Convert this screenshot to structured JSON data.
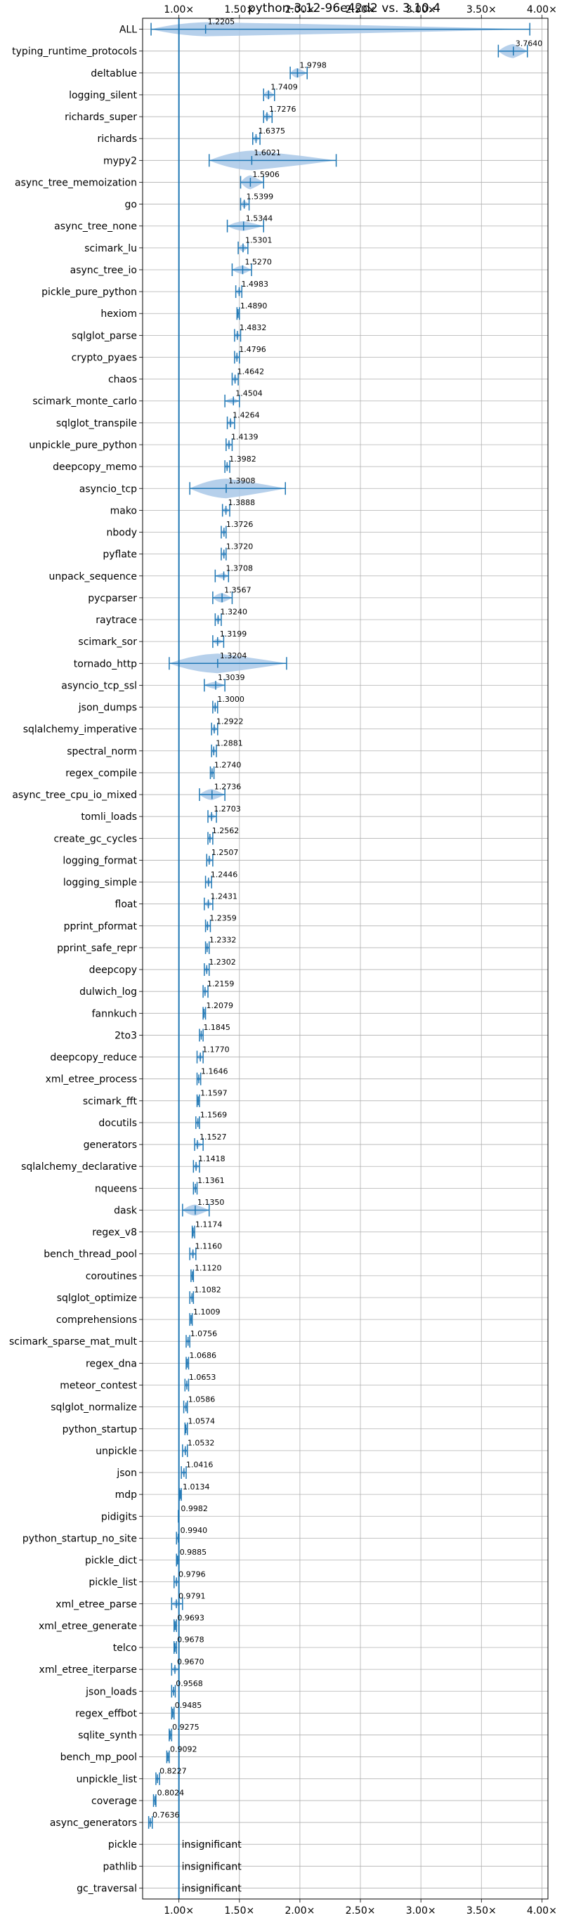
{
  "chart_data": {
    "type": "violin",
    "title": "python-3.12-96e42d2 vs. 3.10.4",
    "xlim": [
      0.7,
      4.05
    ],
    "x_ticks": [
      1.0,
      1.5,
      2.0,
      2.5,
      3.0,
      3.5,
      4.0
    ],
    "x_tick_labels": [
      "1.00×",
      "1.50×",
      "2.00×",
      "2.50×",
      "3.00×",
      "3.50×",
      "4.00×"
    ],
    "grid": true,
    "colors": {
      "line": "#1f77b4",
      "violin": "#a9c8e8",
      "grid": "#b0b0b0",
      "reference": "#1f77b4"
    },
    "reference_x": 1.0,
    "benchmarks": [
      {
        "name": "ALL",
        "median": 1.2205,
        "label": "1.2205",
        "min": 0.77,
        "max": 3.9,
        "width": 0.1
      },
      {
        "name": "typing_runtime_protocols",
        "median": 3.764,
        "label": "3.7640",
        "min": 3.64,
        "max": 3.88,
        "width": 0.1
      },
      {
        "name": "deltablue",
        "median": 1.9798,
        "label": "1.9798",
        "min": 1.92,
        "max": 2.06,
        "width": 0.07
      },
      {
        "name": "logging_silent",
        "median": 1.7409,
        "label": "1.7409",
        "min": 1.7,
        "max": 1.79,
        "width": 0.06
      },
      {
        "name": "richards_super",
        "median": 1.7276,
        "label": "1.7276",
        "min": 1.7,
        "max": 1.77,
        "width": 0.05
      },
      {
        "name": "richards",
        "median": 1.6375,
        "label": "1.6375",
        "min": 1.61,
        "max": 1.67,
        "width": 0.04
      },
      {
        "name": "mypy2",
        "median": 1.6021,
        "label": "1.6021",
        "min": 1.25,
        "max": 2.3,
        "width": 0.18
      },
      {
        "name": "async_tree_memoization",
        "median": 1.5906,
        "label": "1.5906",
        "min": 1.51,
        "max": 1.7,
        "width": 0.1
      },
      {
        "name": "go",
        "median": 1.5399,
        "label": "1.5399",
        "min": 1.51,
        "max": 1.58,
        "width": 0.05
      },
      {
        "name": "async_tree_none",
        "median": 1.5344,
        "label": "1.5344",
        "min": 1.4,
        "max": 1.7,
        "width": 0.07
      },
      {
        "name": "scimark_lu",
        "median": 1.5301,
        "label": "1.5301",
        "min": 1.49,
        "max": 1.57,
        "width": 0.05
      },
      {
        "name": "async_tree_io",
        "median": 1.527,
        "label": "1.5270",
        "min": 1.44,
        "max": 1.6,
        "width": 0.06
      },
      {
        "name": "pickle_pure_python",
        "median": 1.4983,
        "label": "1.4983",
        "min": 1.47,
        "max": 1.52,
        "width": 0.04
      },
      {
        "name": "hexiom",
        "median": 1.489,
        "label": "1.4890",
        "min": 1.48,
        "max": 1.5,
        "width": 0.03
      },
      {
        "name": "sqlglot_parse",
        "median": 1.4832,
        "label": "1.4832",
        "min": 1.46,
        "max": 1.51,
        "width": 0.04
      },
      {
        "name": "crypto_pyaes",
        "median": 1.4796,
        "label": "1.4796",
        "min": 1.46,
        "max": 1.5,
        "width": 0.03
      },
      {
        "name": "chaos",
        "median": 1.4642,
        "label": "1.4642",
        "min": 1.44,
        "max": 1.49,
        "width": 0.04
      },
      {
        "name": "scimark_monte_carlo",
        "median": 1.4504,
        "label": "1.4504",
        "min": 1.38,
        "max": 1.5,
        "width": 0.04
      },
      {
        "name": "sqlglot_transpile",
        "median": 1.4264,
        "label": "1.4264",
        "min": 1.4,
        "max": 1.46,
        "width": 0.04
      },
      {
        "name": "unpickle_pure_python",
        "median": 1.4139,
        "label": "1.4139",
        "min": 1.39,
        "max": 1.44,
        "width": 0.04
      },
      {
        "name": "deepcopy_memo",
        "median": 1.3982,
        "label": "1.3982",
        "min": 1.38,
        "max": 1.42,
        "width": 0.04
      },
      {
        "name": "asyncio_tcp",
        "median": 1.3908,
        "label": "1.3908",
        "min": 1.09,
        "max": 1.88,
        "width": 0.16
      },
      {
        "name": "mako",
        "median": 1.3888,
        "label": "1.3888",
        "min": 1.36,
        "max": 1.42,
        "width": 0.04
      },
      {
        "name": "nbody",
        "median": 1.3726,
        "label": "1.3726",
        "min": 1.35,
        "max": 1.39,
        "width": 0.04
      },
      {
        "name": "pyflate",
        "median": 1.372,
        "label": "1.3720",
        "min": 1.35,
        "max": 1.39,
        "width": 0.04
      },
      {
        "name": "unpack_sequence",
        "median": 1.3708,
        "label": "1.3708",
        "min": 1.3,
        "max": 1.41,
        "width": 0.04
      },
      {
        "name": "pycparser",
        "median": 1.3567,
        "label": "1.3567",
        "min": 1.28,
        "max": 1.44,
        "width": 0.07
      },
      {
        "name": "raytrace",
        "median": 1.324,
        "label": "1.3240",
        "min": 1.3,
        "max": 1.35,
        "width": 0.04
      },
      {
        "name": "scimark_sor",
        "median": 1.3199,
        "label": "1.3199",
        "min": 1.28,
        "max": 1.37,
        "width": 0.04
      },
      {
        "name": "tornado_http",
        "median": 1.3204,
        "label": "1.3204",
        "min": 0.92,
        "max": 1.89,
        "width": 0.18
      },
      {
        "name": "asyncio_tcp_ssl",
        "median": 1.3039,
        "label": "1.3039",
        "min": 1.21,
        "max": 1.38,
        "width": 0.05
      },
      {
        "name": "json_dumps",
        "median": 1.3,
        "label": "1.3000",
        "min": 1.28,
        "max": 1.32,
        "width": 0.04
      },
      {
        "name": "sqlalchemy_imperative",
        "median": 1.2922,
        "label": "1.2922",
        "min": 1.27,
        "max": 1.32,
        "width": 0.04
      },
      {
        "name": "spectral_norm",
        "median": 1.2881,
        "label": "1.2881",
        "min": 1.27,
        "max": 1.31,
        "width": 0.04
      },
      {
        "name": "regex_compile",
        "median": 1.274,
        "label": "1.2740",
        "min": 1.26,
        "max": 1.29,
        "width": 0.03
      },
      {
        "name": "async_tree_cpu_io_mixed",
        "median": 1.2736,
        "label": "1.2736",
        "min": 1.17,
        "max": 1.38,
        "width": 0.08
      },
      {
        "name": "tomli_loads",
        "median": 1.2703,
        "label": "1.2703",
        "min": 1.24,
        "max": 1.31,
        "width": 0.04
      },
      {
        "name": "create_gc_cycles",
        "median": 1.2562,
        "label": "1.2562",
        "min": 1.24,
        "max": 1.28,
        "width": 0.04
      },
      {
        "name": "logging_format",
        "median": 1.2507,
        "label": "1.2507",
        "min": 1.23,
        "max": 1.28,
        "width": 0.04
      },
      {
        "name": "logging_simple",
        "median": 1.2446,
        "label": "1.2446",
        "min": 1.22,
        "max": 1.27,
        "width": 0.04
      },
      {
        "name": "float",
        "median": 1.2431,
        "label": "1.2431",
        "min": 1.21,
        "max": 1.28,
        "width": 0.04
      },
      {
        "name": "pprint_pformat",
        "median": 1.2359,
        "label": "1.2359",
        "min": 1.22,
        "max": 1.26,
        "width": 0.04
      },
      {
        "name": "pprint_safe_repr",
        "median": 1.2332,
        "label": "1.2332",
        "min": 1.22,
        "max": 1.25,
        "width": 0.04
      },
      {
        "name": "deepcopy",
        "median": 1.2302,
        "label": "1.2302",
        "min": 1.21,
        "max": 1.25,
        "width": 0.04
      },
      {
        "name": "dulwich_log",
        "median": 1.2159,
        "label": "1.2159",
        "min": 1.2,
        "max": 1.24,
        "width": 0.04
      },
      {
        "name": "fannkuch",
        "median": 1.2079,
        "label": "1.2079",
        "min": 1.2,
        "max": 1.22,
        "width": 0.03
      },
      {
        "name": "2to3",
        "median": 1.1845,
        "label": "1.1845",
        "min": 1.17,
        "max": 1.2,
        "width": 0.03
      },
      {
        "name": "deepcopy_reduce",
        "median": 1.177,
        "label": "1.1770",
        "min": 1.15,
        "max": 1.2,
        "width": 0.04
      },
      {
        "name": "xml_etree_process",
        "median": 1.1646,
        "label": "1.1646",
        "min": 1.15,
        "max": 1.18,
        "width": 0.03
      },
      {
        "name": "scimark_fft",
        "median": 1.1597,
        "label": "1.1597",
        "min": 1.15,
        "max": 1.17,
        "width": 0.03
      },
      {
        "name": "docutils",
        "median": 1.1569,
        "label": "1.1569",
        "min": 1.14,
        "max": 1.17,
        "width": 0.03
      },
      {
        "name": "generators",
        "median": 1.1527,
        "label": "1.1527",
        "min": 1.13,
        "max": 1.2,
        "width": 0.04
      },
      {
        "name": "sqlalchemy_declarative",
        "median": 1.1418,
        "label": "1.1418",
        "min": 1.12,
        "max": 1.17,
        "width": 0.04
      },
      {
        "name": "nqueens",
        "median": 1.1361,
        "label": "1.1361",
        "min": 1.12,
        "max": 1.15,
        "width": 0.03
      },
      {
        "name": "dask",
        "median": 1.135,
        "label": "1.1350",
        "min": 1.03,
        "max": 1.25,
        "width": 0.08
      },
      {
        "name": "regex_v8",
        "median": 1.1174,
        "label": "1.1174",
        "min": 1.11,
        "max": 1.13,
        "width": 0.03
      },
      {
        "name": "bench_thread_pool",
        "median": 1.116,
        "label": "1.1160",
        "min": 1.09,
        "max": 1.14,
        "width": 0.04
      },
      {
        "name": "coroutines",
        "median": 1.112,
        "label": "1.1120",
        "min": 1.1,
        "max": 1.12,
        "width": 0.03
      },
      {
        "name": "sqlglot_optimize",
        "median": 1.1082,
        "label": "1.1082",
        "min": 1.09,
        "max": 1.12,
        "width": 0.03
      },
      {
        "name": "comprehensions",
        "median": 1.1009,
        "label": "1.1009",
        "min": 1.09,
        "max": 1.11,
        "width": 0.03
      },
      {
        "name": "scimark_sparse_mat_mult",
        "median": 1.0756,
        "label": "1.0756",
        "min": 1.06,
        "max": 1.09,
        "width": 0.03
      },
      {
        "name": "regex_dna",
        "median": 1.0686,
        "label": "1.0686",
        "min": 1.06,
        "max": 1.08,
        "width": 0.03
      },
      {
        "name": "meteor_contest",
        "median": 1.0653,
        "label": "1.0653",
        "min": 1.05,
        "max": 1.08,
        "width": 0.03
      },
      {
        "name": "sqlglot_normalize",
        "median": 1.0586,
        "label": "1.0586",
        "min": 1.04,
        "max": 1.07,
        "width": 0.03
      },
      {
        "name": "python_startup",
        "median": 1.0574,
        "label": "1.0574",
        "min": 1.05,
        "max": 1.07,
        "width": 0.03
      },
      {
        "name": "unpickle",
        "median": 1.0532,
        "label": "1.0532",
        "min": 1.03,
        "max": 1.07,
        "width": 0.03
      },
      {
        "name": "json",
        "median": 1.0416,
        "label": "1.0416",
        "min": 1.02,
        "max": 1.06,
        "width": 0.03
      },
      {
        "name": "mdp",
        "median": 1.0134,
        "label": "1.0134",
        "min": 1.005,
        "max": 1.02,
        "width": 0.02
      },
      {
        "name": "pidigits",
        "median": 0.9982,
        "label": "0.9982",
        "min": 0.995,
        "max": 1.0,
        "width": 0.02
      },
      {
        "name": "python_startup_no_site",
        "median": 0.994,
        "label": "0.9940",
        "min": 0.98,
        "max": 1.0,
        "width": 0.02
      },
      {
        "name": "pickle_dict",
        "median": 0.9885,
        "label": "0.9885",
        "min": 0.98,
        "max": 1.0,
        "width": 0.02
      },
      {
        "name": "pickle_list",
        "median": 0.9796,
        "label": "0.9796",
        "min": 0.96,
        "max": 1.0,
        "width": 0.03
      },
      {
        "name": "xml_etree_parse",
        "median": 0.9791,
        "label": "0.9791",
        "min": 0.94,
        "max": 1.03,
        "width": 0.04
      },
      {
        "name": "xml_etree_generate",
        "median": 0.9693,
        "label": "0.9693",
        "min": 0.96,
        "max": 0.98,
        "width": 0.02
      },
      {
        "name": "telco",
        "median": 0.9678,
        "label": "0.9678",
        "min": 0.96,
        "max": 0.98,
        "width": 0.02
      },
      {
        "name": "xml_etree_iterparse",
        "median": 0.967,
        "label": "0.9670",
        "min": 0.94,
        "max": 1.0,
        "width": 0.03
      },
      {
        "name": "json_loads",
        "median": 0.9568,
        "label": "0.9568",
        "min": 0.94,
        "max": 0.97,
        "width": 0.03
      },
      {
        "name": "regex_effbot",
        "median": 0.9485,
        "label": "0.9485",
        "min": 0.94,
        "max": 0.96,
        "width": 0.02
      },
      {
        "name": "sqlite_synth",
        "median": 0.9275,
        "label": "0.9275",
        "min": 0.92,
        "max": 0.94,
        "width": 0.03
      },
      {
        "name": "bench_mp_pool",
        "median": 0.9092,
        "label": "0.9092",
        "min": 0.9,
        "max": 0.92,
        "width": 0.03
      },
      {
        "name": "unpickle_list",
        "median": 0.8227,
        "label": "0.8227",
        "min": 0.81,
        "max": 0.84,
        "width": 0.03
      },
      {
        "name": "coverage",
        "median": 0.8024,
        "label": "0.8024",
        "min": 0.79,
        "max": 0.81,
        "width": 0.03
      },
      {
        "name": "async_generators",
        "median": 0.7636,
        "label": "0.7636",
        "min": 0.75,
        "max": 0.78,
        "width": 0.03
      },
      {
        "name": "pickle",
        "insignificant": true,
        "label": "insignificant"
      },
      {
        "name": "pathlib",
        "insignificant": true,
        "label": "insignificant"
      },
      {
        "name": "gc_traversal",
        "insignificant": true,
        "label": "insignificant"
      }
    ]
  }
}
